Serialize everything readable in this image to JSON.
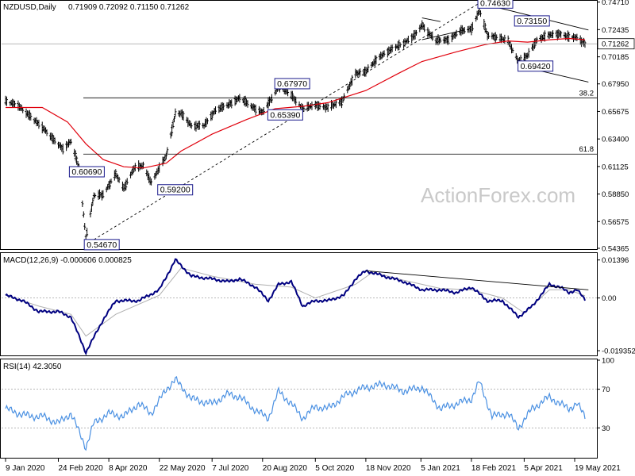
{
  "chart_data": {
    "type": "ohlc",
    "symbol_label": "NZDUSD,Daily",
    "ohlc_label": "0.71909 0.72092 0.71150 0.71262",
    "last_price": "0.71262",
    "watermark": "ActionForex.com",
    "price_axis": {
      "ylim": [
        0.54365,
        0.7475
      ],
      "ticks": [
        "0.74710",
        "0.72435",
        "0.70185",
        "0.67950",
        "0.65675",
        "0.63400",
        "0.61125",
        "0.58850",
        "0.56575",
        "0.54365"
      ]
    },
    "x_axis": {
      "range": [
        "2020-01-09",
        "2021-05-28"
      ],
      "ticks": [
        {
          "date": "2020-01-09",
          "label": "9 Jan 2020"
        },
        {
          "date": "2020-02-24",
          "label": "24 Feb 2020"
        },
        {
          "date": "2020-04-08",
          "label": "8 Apr 2020"
        },
        {
          "date": "2020-05-22",
          "label": "22 May 2020"
        },
        {
          "date": "2020-07-07",
          "label": "7 Jul 2020"
        },
        {
          "date": "2020-08-20",
          "label": "20 Aug 2020"
        },
        {
          "date": "2020-10-05",
          "label": "5 Oct 2020"
        },
        {
          "date": "2020-11-18",
          "label": "18 Nov 2020"
        },
        {
          "date": "2021-01-05",
          "label": "5 Jan 2021"
        },
        {
          "date": "2021-02-18",
          "label": "18 Feb 2021"
        },
        {
          "date": "2021-04-05",
          "label": "5 Apr 2021"
        },
        {
          "date": "2021-05-19",
          "label": "19 May 2021"
        }
      ]
    },
    "price_series": [
      [
        "2020-01-09",
        0.665
      ],
      [
        "2020-01-20",
        0.662
      ],
      [
        "2020-01-31",
        0.652
      ],
      [
        "2020-02-10",
        0.644
      ],
      [
        "2020-02-20",
        0.633
      ],
      [
        "2020-02-28",
        0.626
      ],
      [
        "2020-03-06",
        0.632
      ],
      [
        "2020-03-13",
        0.61
      ],
      [
        "2020-03-19",
        0.552
      ],
      [
        "2020-03-26",
        0.587
      ],
      [
        "2020-04-03",
        0.588
      ],
      [
        "2020-04-14",
        0.605
      ],
      [
        "2020-04-21",
        0.593
      ],
      [
        "2020-04-30",
        0.61
      ],
      [
        "2020-05-08",
        0.612
      ],
      [
        "2020-05-15",
        0.598
      ],
      [
        "2020-05-28",
        0.62
      ],
      [
        "2020-06-05",
        0.655
      ],
      [
        "2020-06-10",
        0.655
      ],
      [
        "2020-06-19",
        0.645
      ],
      [
        "2020-06-30",
        0.645
      ],
      [
        "2020-07-10",
        0.658
      ],
      [
        "2020-07-21",
        0.662
      ],
      [
        "2020-07-31",
        0.668
      ],
      [
        "2020-08-10",
        0.661
      ],
      [
        "2020-08-20",
        0.656
      ],
      [
        "2020-08-31",
        0.672
      ],
      [
        "2020-09-03",
        0.678
      ],
      [
        "2020-09-14",
        0.67
      ],
      [
        "2020-09-24",
        0.659
      ],
      [
        "2020-10-05",
        0.662
      ],
      [
        "2020-10-16",
        0.66
      ],
      [
        "2020-10-28",
        0.665
      ],
      [
        "2020-11-09",
        0.688
      ],
      [
        "2020-11-18",
        0.69
      ],
      [
        "2020-11-30",
        0.702
      ],
      [
        "2020-12-10",
        0.708
      ],
      [
        "2020-12-21",
        0.713
      ],
      [
        "2020-12-31",
        0.72
      ],
      [
        "2021-01-06",
        0.728
      ],
      [
        "2021-01-18",
        0.715
      ],
      [
        "2021-01-29",
        0.716
      ],
      [
        "2021-02-08",
        0.723
      ],
      [
        "2021-02-18",
        0.725
      ],
      [
        "2021-02-25",
        0.74
      ],
      [
        "2021-03-04",
        0.72
      ],
      [
        "2021-03-12",
        0.718
      ],
      [
        "2021-03-22",
        0.715
      ],
      [
        "2021-03-31",
        0.698
      ],
      [
        "2021-04-08",
        0.703
      ],
      [
        "2021-04-16",
        0.716
      ],
      [
        "2021-04-27",
        0.72
      ],
      [
        "2021-05-06",
        0.721
      ],
      [
        "2021-05-14",
        0.718
      ],
      [
        "2021-05-21",
        0.718
      ],
      [
        "2021-05-28",
        0.7126
      ]
    ],
    "sma_series": [
      [
        "2020-01-09",
        0.66
      ],
      [
        "2020-02-10",
        0.66
      ],
      [
        "2020-03-03",
        0.648
      ],
      [
        "2020-03-19",
        0.63
      ],
      [
        "2020-04-03",
        0.617
      ],
      [
        "2020-04-21",
        0.611
      ],
      [
        "2020-05-08",
        0.61
      ],
      [
        "2020-05-28",
        0.614
      ],
      [
        "2020-06-10",
        0.624
      ],
      [
        "2020-07-07",
        0.638
      ],
      [
        "2020-08-06",
        0.65
      ],
      [
        "2020-08-31",
        0.659
      ],
      [
        "2020-09-24",
        0.661
      ],
      [
        "2020-10-16",
        0.664
      ],
      [
        "2020-11-18",
        0.674
      ],
      [
        "2020-12-16",
        0.688
      ],
      [
        "2021-01-06",
        0.698
      ],
      [
        "2021-02-05",
        0.706
      ],
      [
        "2021-03-02",
        0.712
      ],
      [
        "2021-03-22",
        0.715
      ],
      [
        "2021-04-08",
        0.714
      ],
      [
        "2021-04-27",
        0.716
      ],
      [
        "2021-05-14",
        0.717
      ],
      [
        "2021-05-28",
        0.716
      ]
    ],
    "horizontal_levels": [
      {
        "label": "38.2",
        "value": 0.668
      },
      {
        "label": "61.8",
        "value": 0.6215
      }
    ],
    "price_annotations": [
      {
        "text": "0.74630",
        "date": "2021-02-25",
        "value": 0.7463,
        "anchor": "left"
      },
      {
        "text": "0.73150",
        "date": "2021-04-27",
        "value": 0.7315,
        "anchor": "right"
      },
      {
        "text": "0.69420",
        "date": "2021-04-01",
        "value": 0.6942,
        "anchor": "left"
      },
      {
        "text": "0.67970",
        "date": "2020-09-01",
        "value": 0.6797,
        "anchor": "left"
      },
      {
        "text": "0.65390",
        "date": "2020-09-24",
        "value": 0.6539,
        "anchor": "right"
      },
      {
        "text": "0.60690",
        "date": "2020-03-06",
        "value": 0.6069,
        "anchor": "left"
      },
      {
        "text": "0.59200",
        "date": "2020-05-22",
        "value": 0.592,
        "anchor": "left"
      },
      {
        "text": "0.54670",
        "date": "2020-03-19",
        "value": 0.5467,
        "anchor": "left"
      }
    ],
    "trendlines": [
      {
        "style": "dashed",
        "from": [
          "2020-03-19",
          0.5467
        ],
        "to": [
          "2021-02-25",
          0.7463
        ]
      },
      {
        "style": "solid",
        "from": [
          "2021-02-25",
          0.7463
        ],
        "to": [
          "2021-05-31",
          0.724
        ]
      },
      {
        "style": "solid",
        "from": [
          "2021-04-01",
          0.6942
        ],
        "to": [
          "2021-05-31",
          0.681
        ]
      },
      {
        "style": "solid",
        "from": [
          "2021-01-06",
          0.734
        ],
        "to": [
          "2021-01-22",
          0.731
        ]
      },
      {
        "style": "solid",
        "from": [
          "2021-01-06",
          0.716
        ],
        "to": [
          "2021-02-12",
          0.724
        ]
      }
    ],
    "macd": {
      "label": "MACD(12,26,9) -0.000606 0.000825",
      "ylim": [
        -0.0208,
        0.0162
      ],
      "ticks": [
        "0.01396",
        "0.00",
        "-0.019352"
      ],
      "macd_series": [
        [
          "2020-01-09",
          0.001
        ],
        [
          "2020-01-24",
          -0.001
        ],
        [
          "2020-02-07",
          -0.005
        ],
        [
          "2020-02-24",
          -0.005
        ],
        [
          "2020-03-06",
          -0.007
        ],
        [
          "2020-03-19",
          -0.02
        ],
        [
          "2020-04-03",
          -0.008
        ],
        [
          "2020-04-14",
          -0.001
        ],
        [
          "2020-05-04",
          -0.001
        ],
        [
          "2020-05-22",
          0.003
        ],
        [
          "2020-06-05",
          0.014
        ],
        [
          "2020-06-19",
          0.008
        ],
        [
          "2020-07-07",
          0.007
        ],
        [
          "2020-07-21",
          0.006
        ],
        [
          "2020-07-31",
          0.007
        ],
        [
          "2020-08-14",
          0.004
        ],
        [
          "2020-08-25",
          -0.001
        ],
        [
          "2020-09-03",
          0.005
        ],
        [
          "2020-09-14",
          0.006
        ],
        [
          "2020-09-24",
          -0.003
        ],
        [
          "2020-10-05",
          -0.001
        ],
        [
          "2020-10-16",
          -0.001
        ],
        [
          "2020-10-30",
          0.001
        ],
        [
          "2020-11-09",
          0.007
        ],
        [
          "2020-11-18",
          0.01
        ],
        [
          "2020-12-04",
          0.008
        ],
        [
          "2020-12-21",
          0.006
        ],
        [
          "2021-01-06",
          0.003
        ],
        [
          "2021-01-22",
          0.003
        ],
        [
          "2021-02-05",
          0.002
        ],
        [
          "2021-02-18",
          0.004
        ],
        [
          "2021-03-04",
          -0.001
        ],
        [
          "2021-03-17",
          -0.001
        ],
        [
          "2021-03-31",
          -0.007
        ],
        [
          "2021-04-12",
          -0.003
        ],
        [
          "2021-04-27",
          0.005
        ],
        [
          "2021-05-06",
          0.004
        ],
        [
          "2021-05-14",
          0.002
        ],
        [
          "2021-05-21",
          0.003
        ],
        [
          "2021-05-28",
          -0.0006
        ]
      ],
      "signal_series": [
        [
          "2020-01-09",
          0.001
        ],
        [
          "2020-02-07",
          -0.003
        ],
        [
          "2020-03-06",
          -0.006
        ],
        [
          "2020-03-19",
          -0.014
        ],
        [
          "2020-04-14",
          -0.006
        ],
        [
          "2020-05-22",
          0.001
        ],
        [
          "2020-06-10",
          0.011
        ],
        [
          "2020-07-07",
          0.008
        ],
        [
          "2020-08-14",
          0.005
        ],
        [
          "2020-09-14",
          0.004
        ],
        [
          "2020-10-05",
          0.0
        ],
        [
          "2020-11-09",
          0.005
        ],
        [
          "2020-11-24",
          0.0095
        ],
        [
          "2020-12-21",
          0.0065
        ],
        [
          "2021-01-22",
          0.0035
        ],
        [
          "2021-02-18",
          0.003
        ],
        [
          "2021-03-17",
          0.0
        ],
        [
          "2021-04-05",
          -0.0055
        ],
        [
          "2021-04-27",
          0.003
        ],
        [
          "2021-05-14",
          0.003
        ],
        [
          "2021-05-28",
          0.0008
        ]
      ],
      "trendline": {
        "from": [
          "2020-11-18",
          0.01
        ],
        "to": [
          "2021-05-31",
          0.003
        ]
      }
    },
    "rsi": {
      "label": "RSI(14) 42.3050",
      "ylim": [
        0,
        100
      ],
      "ticks": [
        "100",
        "70",
        "30"
      ],
      "levels": [
        70,
        30
      ],
      "series": [
        [
          "2020-01-09",
          50
        ],
        [
          "2020-01-20",
          45
        ],
        [
          "2020-01-31",
          42
        ],
        [
          "2020-02-10",
          42
        ],
        [
          "2020-02-24",
          35
        ],
        [
          "2020-03-06",
          45
        ],
        [
          "2020-03-19",
          10
        ],
        [
          "2020-03-26",
          35
        ],
        [
          "2020-04-08",
          45
        ],
        [
          "2020-04-21",
          42
        ],
        [
          "2020-05-04",
          55
        ],
        [
          "2020-05-15",
          45
        ],
        [
          "2020-05-28",
          70
        ],
        [
          "2020-06-05",
          80
        ],
        [
          "2020-06-19",
          60
        ],
        [
          "2020-07-07",
          55
        ],
        [
          "2020-07-21",
          65
        ],
        [
          "2020-07-31",
          62
        ],
        [
          "2020-08-14",
          48
        ],
        [
          "2020-08-25",
          40
        ],
        [
          "2020-09-03",
          68
        ],
        [
          "2020-09-14",
          55
        ],
        [
          "2020-09-24",
          40
        ],
        [
          "2020-10-05",
          52
        ],
        [
          "2020-10-16",
          50
        ],
        [
          "2020-11-02",
          65
        ],
        [
          "2020-11-18",
          72
        ],
        [
          "2020-12-04",
          75
        ],
        [
          "2020-12-21",
          68
        ],
        [
          "2021-01-06",
          72
        ],
        [
          "2021-01-22",
          50
        ],
        [
          "2021-02-05",
          55
        ],
        [
          "2021-02-18",
          60
        ],
        [
          "2021-02-25",
          78
        ],
        [
          "2021-03-08",
          42
        ],
        [
          "2021-03-22",
          45
        ],
        [
          "2021-03-31",
          30
        ],
        [
          "2021-04-12",
          50
        ],
        [
          "2021-04-27",
          62
        ],
        [
          "2021-05-06",
          55
        ],
        [
          "2021-05-14",
          50
        ],
        [
          "2021-05-21",
          55
        ],
        [
          "2021-05-28",
          42
        ]
      ]
    }
  },
  "colors": {
    "price": "#000000",
    "sma": "#e0000c",
    "macd": "#000080",
    "signal": "#b0b0b0",
    "rsi": "#4a90e2",
    "annotation_border": "#1a1a8c",
    "grid": "#a0a0a0"
  }
}
